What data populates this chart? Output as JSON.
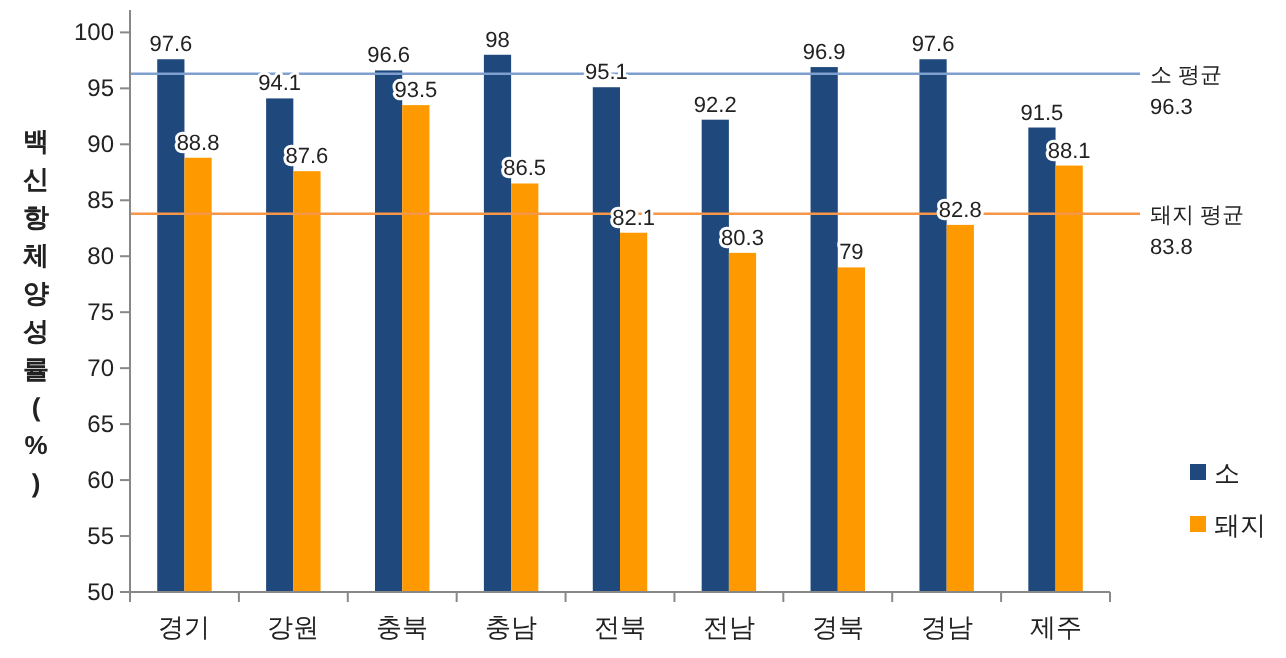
{
  "chart_data": {
    "type": "bar",
    "ylabel": "백신항체양성률(%)",
    "categories": [
      "경기",
      "강원",
      "충북",
      "충남",
      "전북",
      "전남",
      "경북",
      "경남",
      "제주"
    ],
    "series": [
      {
        "name": "소",
        "color": "#1f497d",
        "values": [
          97.6,
          94.1,
          96.6,
          98,
          95.1,
          92.2,
          96.9,
          97.6,
          91.5
        ]
      },
      {
        "name": "돼지",
        "color": "#ff9900",
        "values": [
          88.8,
          87.6,
          93.5,
          86.5,
          82.1,
          80.3,
          79,
          82.8,
          88.1
        ]
      }
    ],
    "ylim": [
      50,
      102
    ],
    "yticks": [
      50,
      55,
      60,
      65,
      70,
      75,
      80,
      85,
      90,
      95,
      100
    ],
    "data_labels": true,
    "grid": false,
    "legend": "right",
    "ref_lines": [
      {
        "axis": "y",
        "value": 96.3,
        "label": "소 평균 96.3",
        "color": "#7f9fcf"
      },
      {
        "axis": "y",
        "value": 83.8,
        "label": "돼지 평균 83.8",
        "color": "#f79646"
      }
    ]
  }
}
